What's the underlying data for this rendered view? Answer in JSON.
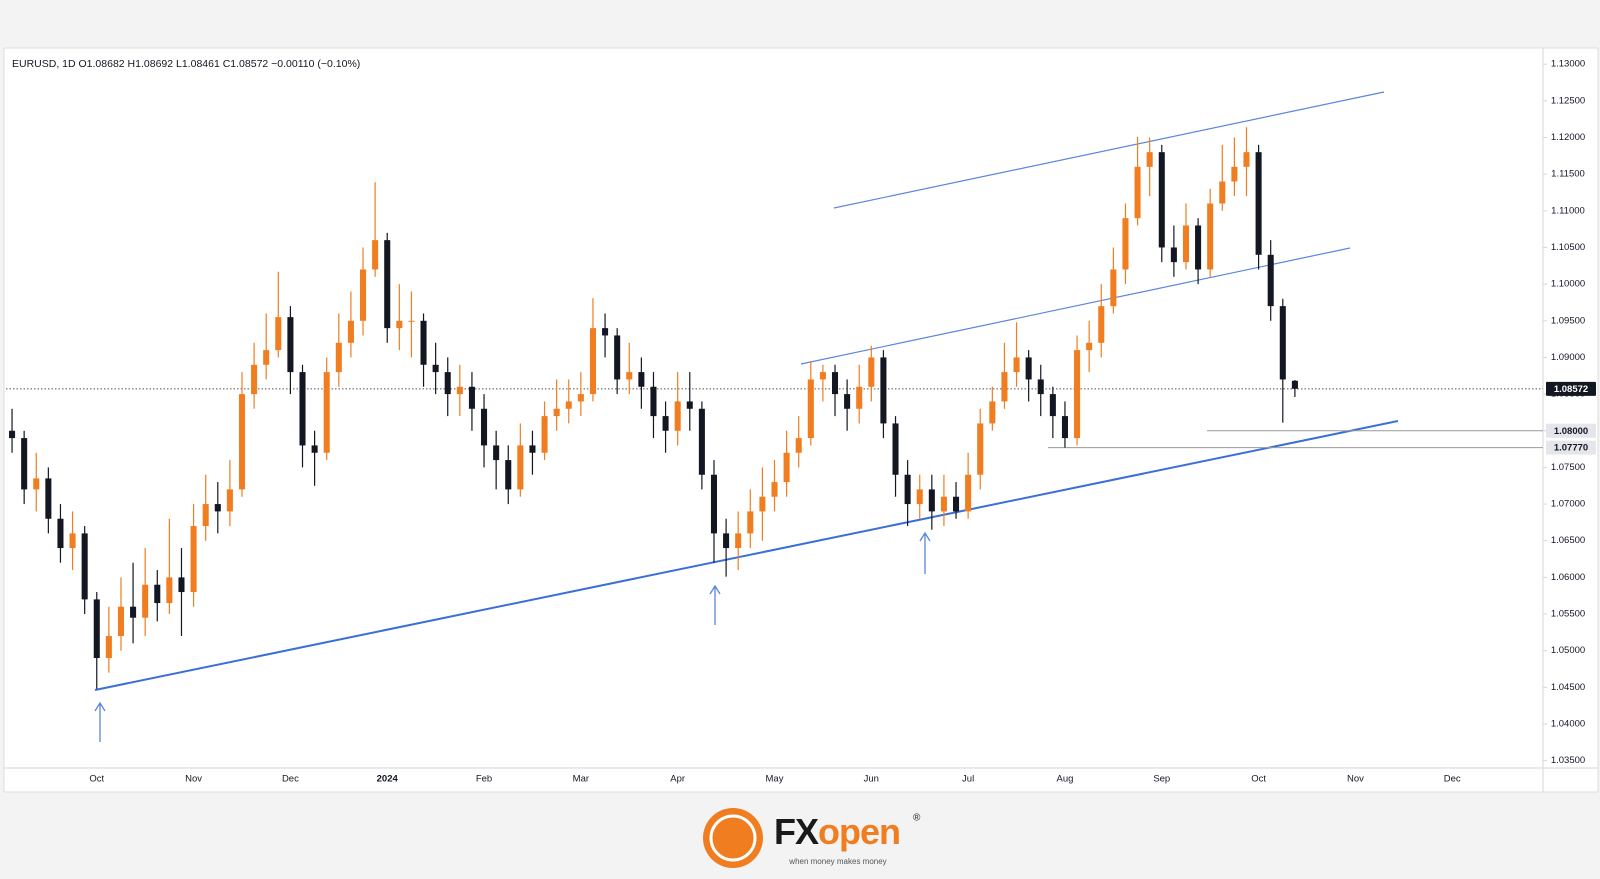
{
  "chart_data": {
    "type": "candlestick",
    "title": "EURUSD, 1D  O1.08682  H1.08692  L1.08461  C1.08572  −0.00110 (−0.10%)",
    "categories": [
      null,
      null,
      null,
      null,
      null,
      null,
      null,
      "Oct",
      null,
      null,
      null,
      null,
      null,
      null,
      null,
      "Nov",
      null,
      null,
      null,
      null,
      null,
      null,
      null,
      "Dec",
      null,
      null,
      null,
      null,
      null,
      null,
      null,
      "2024",
      null,
      null,
      null,
      null,
      null,
      null,
      null,
      "Feb",
      null,
      null,
      null,
      null,
      null,
      null,
      null,
      "Mar",
      null,
      null,
      null,
      null,
      null,
      null,
      null,
      "Apr",
      null,
      null,
      null,
      null,
      null,
      null,
      null,
      "May",
      null,
      null,
      null,
      null,
      null,
      null,
      null,
      "Jun",
      null,
      null,
      null,
      null,
      null,
      null,
      null,
      "Jul",
      null,
      null,
      null,
      null,
      null,
      null,
      null,
      "Aug",
      null,
      null,
      null,
      null,
      null,
      null,
      null,
      "Sep",
      null,
      null,
      null,
      null,
      null,
      null,
      null,
      "Oct",
      null,
      null,
      null,
      null,
      null,
      null,
      null,
      "Nov",
      null,
      null,
      null,
      null,
      null,
      null,
      null,
      "Dec",
      null,
      null,
      null,
      null,
      null,
      null,
      null
    ],
    "open": [
      1.08,
      1.079,
      1.072,
      1.0735,
      1.068,
      1.064,
      1.066,
      1.057,
      1.049,
      1.052,
      1.056,
      1.0545,
      1.059,
      1.0565,
      1.06,
      1.058,
      1.067,
      1.07,
      1.069,
      1.072,
      1.085,
      1.089,
      1.091,
      1.0955,
      1.088,
      1.078,
      1.077,
      1.088,
      1.092,
      1.095,
      1.102,
      1.106,
      1.094,
      1.095,
      1.095,
      1.089,
      1.088,
      1.085,
      1.086,
      1.083,
      1.078,
      1.076,
      1.072,
      1.078,
      1.077,
      1.082,
      1.083,
      1.084,
      1.085,
      1.094,
      1.093,
      1.087,
      1.088,
      1.086,
      1.082,
      1.08,
      1.084,
      1.083,
      1.074,
      1.066,
      1.064,
      1.066,
      1.069,
      1.071,
      1.073,
      1.077,
      1.079,
      1.087,
      1.088,
      1.085,
      1.083,
      1.086,
      1.09,
      1.081,
      1.074,
      1.07,
      1.072,
      1.069,
      1.071,
      1.069,
      1.074,
      1.081,
      1.084,
      1.088,
      1.09,
      1.087,
      1.085,
      1.082,
      1.079,
      1.091,
      1.092,
      1.097,
      1.102,
      1.109,
      1.116,
      1.118,
      1.105,
      1.103,
      1.108,
      1.102,
      1.111,
      1.114,
      1.116,
      1.118,
      1.104,
      1.097,
      1.08682,
      null,
      null,
      null,
      null,
      null,
      null,
      null,
      null,
      null,
      null,
      null,
      null,
      null,
      null,
      null,
      null,
      null,
      null,
      null,
      null
    ],
    "high": [
      1.083,
      1.08,
      1.077,
      1.075,
      1.07,
      1.069,
      1.067,
      1.058,
      1.056,
      1.06,
      1.062,
      1.064,
      1.061,
      1.068,
      1.064,
      1.07,
      1.074,
      1.073,
      1.076,
      1.088,
      1.092,
      1.096,
      1.1017,
      1.097,
      1.089,
      1.08,
      1.09,
      1.096,
      1.099,
      1.105,
      1.1139,
      1.107,
      1.1,
      1.099,
      1.096,
      1.092,
      1.09,
      1.089,
      1.088,
      1.085,
      1.08,
      1.078,
      1.081,
      1.08,
      1.084,
      1.087,
      1.087,
      1.088,
      1.0981,
      1.096,
      1.094,
      1.092,
      1.09,
      1.088,
      1.084,
      1.088,
      1.088,
      1.084,
      1.076,
      1.068,
      1.069,
      1.072,
      1.075,
      1.076,
      1.08,
      1.082,
      1.0895,
      1.089,
      1.089,
      1.087,
      1.089,
      1.0916,
      1.091,
      1.082,
      1.076,
      1.074,
      1.074,
      1.074,
      1.073,
      1.077,
      1.083,
      1.086,
      1.092,
      1.0948,
      1.091,
      1.089,
      1.086,
      1.084,
      1.093,
      1.095,
      1.1,
      1.105,
      1.111,
      1.1201,
      1.12,
      1.119,
      1.108,
      1.111,
      1.109,
      1.113,
      1.119,
      1.12,
      1.1214,
      1.119,
      1.106,
      1.098,
      1.08692,
      null,
      null,
      null,
      null,
      null,
      null,
      null,
      null,
      null,
      null,
      null,
      null,
      null,
      null,
      null,
      null,
      null,
      null,
      null,
      null
    ],
    "low": [
      1.077,
      1.07,
      1.069,
      1.066,
      1.062,
      1.061,
      1.055,
      1.0448,
      1.047,
      1.05,
      1.051,
      1.052,
      1.054,
      1.055,
      1.052,
      1.056,
      1.065,
      1.066,
      1.067,
      1.071,
      1.083,
      1.087,
      1.09,
      1.085,
      1.075,
      1.0725,
      1.076,
      1.086,
      1.09,
      1.093,
      1.101,
      1.092,
      1.091,
      1.09,
      1.086,
      1.085,
      1.082,
      1.082,
      1.08,
      1.075,
      1.072,
      1.07,
      1.071,
      1.074,
      1.076,
      1.08,
      1.081,
      1.082,
      1.084,
      1.09,
      1.085,
      1.085,
      1.083,
      1.079,
      1.077,
      1.078,
      1.08,
      1.072,
      1.062,
      1.0601,
      1.061,
      1.064,
      1.065,
      1.069,
      1.071,
      1.075,
      1.078,
      1.084,
      1.082,
      1.08,
      1.081,
      1.084,
      1.079,
      1.071,
      1.067,
      1.068,
      1.0665,
      1.067,
      1.068,
      1.068,
      1.072,
      1.08,
      1.083,
      1.086,
      1.084,
      1.082,
      1.079,
      1.0777,
      1.078,
      1.088,
      1.09,
      1.096,
      1.1,
      1.108,
      1.112,
      1.103,
      1.101,
      1.102,
      1.1,
      1.101,
      1.11,
      1.112,
      1.112,
      1.102,
      1.095,
      1.0811,
      1.08461,
      null,
      null,
      null,
      null,
      null,
      null,
      null,
      null,
      null,
      null,
      null,
      null,
      null,
      null,
      null,
      null,
      null,
      null,
      null,
      null
    ],
    "close": [
      1.079,
      1.072,
      1.0735,
      1.068,
      1.064,
      1.066,
      1.057,
      1.049,
      1.052,
      1.056,
      1.0545,
      1.059,
      1.0565,
      1.06,
      1.058,
      1.067,
      1.07,
      1.069,
      1.072,
      1.085,
      1.089,
      1.091,
      1.0955,
      1.088,
      1.078,
      1.077,
      1.088,
      1.092,
      1.095,
      1.102,
      1.106,
      1.094,
      1.095,
      1.095,
      1.089,
      1.088,
      1.085,
      1.086,
      1.083,
      1.078,
      1.076,
      1.072,
      1.078,
      1.077,
      1.082,
      1.083,
      1.084,
      1.085,
      1.094,
      1.093,
      1.087,
      1.088,
      1.086,
      1.082,
      1.08,
      1.084,
      1.083,
      1.074,
      1.066,
      1.064,
      1.066,
      1.069,
      1.071,
      1.073,
      1.077,
      1.079,
      1.087,
      1.088,
      1.085,
      1.083,
      1.086,
      1.09,
      1.081,
      1.074,
      1.07,
      1.072,
      1.069,
      1.071,
      1.069,
      1.074,
      1.081,
      1.084,
      1.088,
      1.09,
      1.087,
      1.085,
      1.082,
      1.079,
      1.091,
      1.092,
      1.097,
      1.102,
      1.109,
      1.116,
      1.118,
      1.105,
      1.103,
      1.108,
      1.102,
      1.111,
      1.114,
      1.116,
      1.118,
      1.104,
      1.097,
      1.087,
      1.08572,
      null,
      null,
      null,
      null,
      null,
      null,
      null,
      null,
      null,
      null,
      null,
      null,
      null,
      null,
      null,
      null,
      null,
      null,
      null,
      null
    ],
    "up_color": "#f07d1f",
    "down_color": "#131722",
    "ylim": [
      1.034,
      1.1318
    ],
    "yticks": [
      {
        "value": 1.035,
        "label": "1.03500"
      },
      {
        "value": 1.04,
        "label": "1.04000"
      },
      {
        "value": 1.045,
        "label": "1.04500"
      },
      {
        "value": 1.05,
        "label": "1.05000"
      },
      {
        "value": 1.055,
        "label": "1.05500"
      },
      {
        "value": 1.06,
        "label": "1.06000"
      },
      {
        "value": 1.065,
        "label": "1.06500"
      },
      {
        "value": 1.07,
        "label": "1.07000"
      },
      {
        "value": 1.075,
        "label": "1.07500"
      },
      {
        "value": 1.08,
        "label": "1.08000"
      },
      {
        "value": 1.085,
        "label": "1.08500"
      },
      {
        "value": 1.09,
        "label": "1.09000"
      },
      {
        "value": 1.095,
        "label": "1.09500"
      },
      {
        "value": 1.1,
        "label": "1.10000"
      },
      {
        "value": 1.105,
        "label": "1.10500"
      },
      {
        "value": 1.11,
        "label": "1.11000"
      },
      {
        "value": 1.115,
        "label": "1.11500"
      },
      {
        "value": 1.12,
        "label": "1.12000"
      },
      {
        "value": 1.125,
        "label": "1.12500"
      },
      {
        "value": 1.13,
        "label": "1.13000"
      }
    ],
    "grid": false,
    "current_price": {
      "value": 1.08572,
      "label": "1.08572"
    },
    "levels": [
      {
        "value": 1.08,
        "label": "1.08000"
      },
      {
        "value": 1.0777,
        "label": "1.07770"
      }
    ]
  },
  "branding": {
    "brand_a": "FX",
    "brand_b": "open",
    "mark": "®",
    "tagline": "when money makes money"
  }
}
